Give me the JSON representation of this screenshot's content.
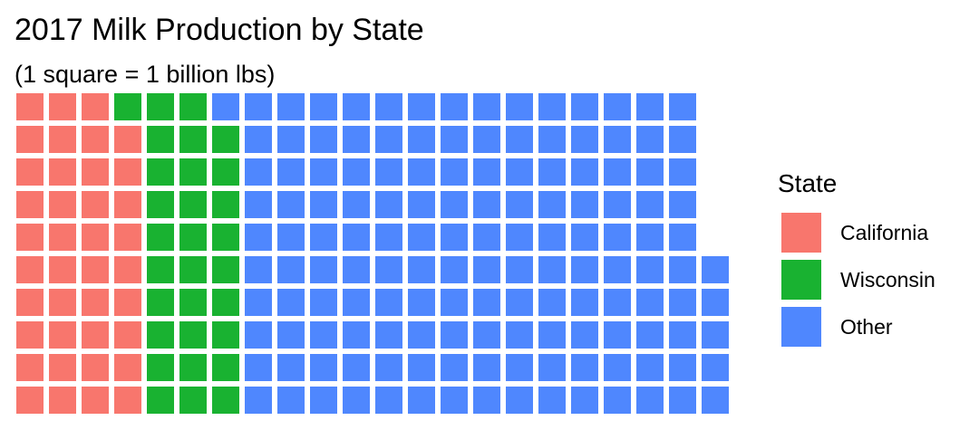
{
  "title": "2017 Milk Production by State",
  "subtitle": "(1 square = 1 billion lbs)",
  "chart_data": {
    "type": "waffle",
    "unit": "1 square = 1 billion lbs",
    "rows": 10,
    "fill_order": "column-major, bottom to top",
    "categories": [
      "California",
      "Wisconsin",
      "Other"
    ],
    "values": [
      39,
      30,
      146
    ],
    "colors": [
      "#F8766D",
      "#19B231",
      "#4F87FE"
    ],
    "legend": {
      "title": "State",
      "position": "right",
      "items": [
        {
          "label": "California",
          "color": "#F8766D"
        },
        {
          "label": "Wisconsin",
          "color": "#19B231"
        },
        {
          "label": "Other",
          "color": "#4F87FE"
        }
      ]
    }
  }
}
